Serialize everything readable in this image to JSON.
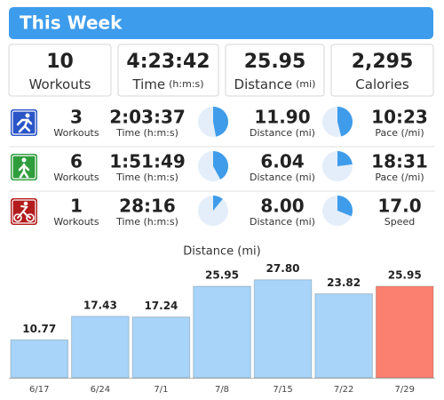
{
  "header": {
    "title": "This Week"
  },
  "summary": [
    {
      "value": "10",
      "label": "Workouts"
    },
    {
      "value": "4:23:42",
      "label": "Time",
      "unit": "(h:m:s)"
    },
    {
      "value": "25.95",
      "label": "Distance",
      "unit": "(mi)"
    },
    {
      "value": "2,295",
      "label": "Calories"
    }
  ],
  "activities": [
    {
      "workouts": "3",
      "workouts_label": "Workouts",
      "time": "2:03:37",
      "time_label": "Time (h:m:s)",
      "time_share": 47,
      "distance": "11.90",
      "distance_label": "Distance (mi)",
      "distance_share": 46,
      "pace": "10:23",
      "pace_label": "Pace (/mi)"
    },
    {
      "workouts": "6",
      "workouts_label": "Workouts",
      "time": "1:51:49",
      "time_label": "Time (h:m:s)",
      "time_share": 42,
      "distance": "6.04",
      "distance_label": "Distance (mi)",
      "distance_share": 23,
      "pace": "18:31",
      "pace_label": "Pace (/mi)"
    },
    {
      "workouts": "1",
      "workouts_label": "Workouts",
      "time": "28:16",
      "time_label": "Time (h:m:s)",
      "time_share": 11,
      "distance": "8.00",
      "distance_label": "Distance (mi)",
      "distance_share": 31,
      "pace": "17.0",
      "pace_label": "Speed"
    }
  ],
  "chart_data": {
    "type": "bar",
    "title": "Distance (mi)",
    "categories": [
      "6/17",
      "6/24",
      "7/1",
      "7/8",
      "7/15",
      "7/22",
      "7/29"
    ],
    "values": [
      10.77,
      17.43,
      17.24,
      25.95,
      27.8,
      23.82,
      25.95
    ],
    "value_labels": [
      "10.77",
      "17.43",
      "17.24",
      "25.95",
      "27.80",
      "23.82",
      "25.95"
    ],
    "colors": [
      "#a7d4f8",
      "#a7d4f8",
      "#a7d4f8",
      "#a7d4f8",
      "#a7d4f8",
      "#a7d4f8",
      "#fb8070"
    ],
    "ylim": [
      0,
      30
    ]
  }
}
